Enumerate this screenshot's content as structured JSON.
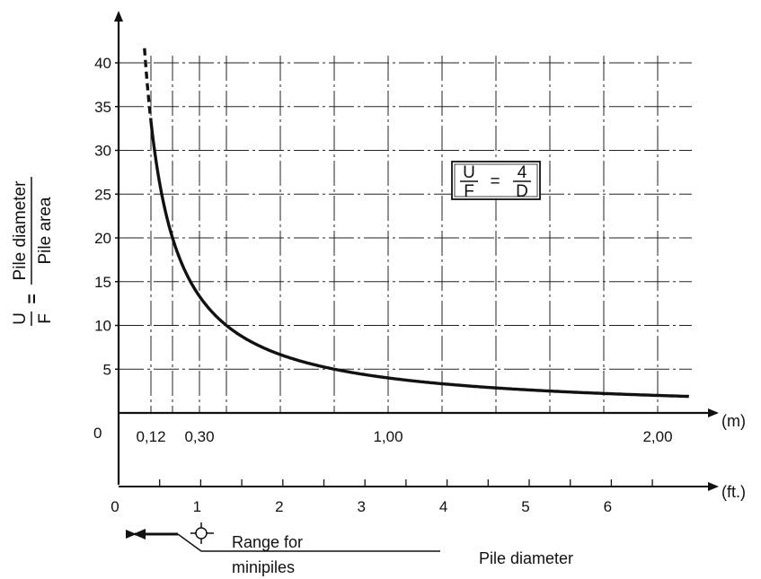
{
  "chart_data": {
    "type": "line",
    "title": "",
    "xlabel": "Pile diameter",
    "x_unit_m": "(m)",
    "x_unit_ft": "(ft.)",
    "ylabel_left": "U",
    "ylabel_left_bottom": "F",
    "ylabel_eq": "=",
    "ylabel_numerator": "Pile diameter",
    "ylabel_denominator": "Pile area",
    "formula": {
      "lhs_num": "U",
      "lhs_den": "F",
      "eq": "=",
      "rhs_num": "4",
      "rhs_den": "D"
    },
    "xlim_m": [
      0,
      2.1
    ],
    "ylim": [
      0,
      43
    ],
    "y_ticks": [
      "0",
      "5",
      "10",
      "15",
      "20",
      "25",
      "30",
      "35",
      "40"
    ],
    "y_tick_values": [
      0,
      5,
      10,
      15,
      20,
      25,
      30,
      35,
      40
    ],
    "x_ticks_m": [
      {
        "value": 0.12,
        "label": "0,12"
      },
      {
        "value": 0.3,
        "label": "0,30"
      },
      {
        "value": 1.0,
        "label": "1,00"
      },
      {
        "value": 2.0,
        "label": "2,00"
      }
    ],
    "x_ticks_ft": [
      {
        "value": 0,
        "label": "0"
      },
      {
        "value": 1,
        "label": "1"
      },
      {
        "value": 2,
        "label": "2"
      },
      {
        "value": 3,
        "label": "3"
      },
      {
        "value": 4,
        "label": "4"
      },
      {
        "value": 5,
        "label": "5"
      },
      {
        "value": 6,
        "label": "6"
      }
    ],
    "series": [
      {
        "x": [
          0.1,
          0.12,
          0.14,
          0.16,
          0.18,
          0.2,
          0.25,
          0.3,
          0.35,
          0.4,
          0.5,
          0.6,
          0.7,
          0.8,
          0.9,
          1.0,
          1.2,
          1.4,
          1.6,
          1.8,
          2.0
        ],
        "y": [
          40,
          33.3,
          28.6,
          25,
          22.2,
          20,
          16,
          13.3,
          11.4,
          10,
          8,
          6.67,
          5.71,
          5,
          4.44,
          4,
          3.33,
          2.86,
          2.5,
          2.22,
          2
        ]
      }
    ],
    "annotation": {
      "label_line1": "Range for",
      "label_line2": "minipiles"
    },
    "grid": true
  }
}
